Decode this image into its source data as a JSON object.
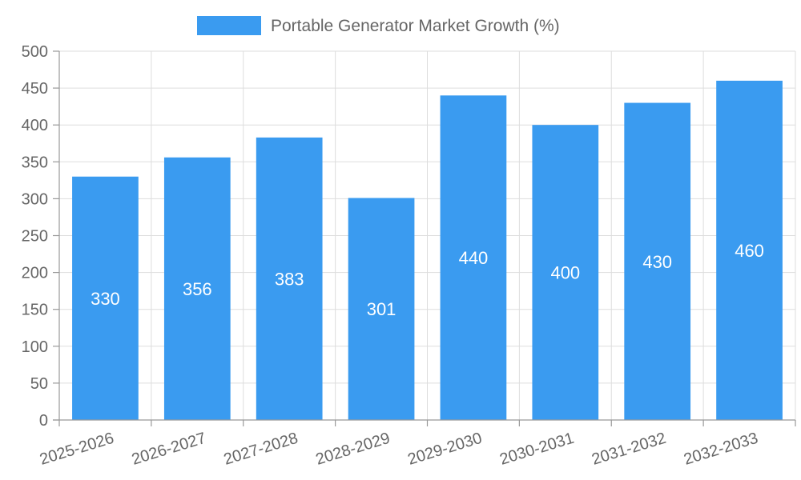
{
  "chart_data": {
    "type": "bar",
    "title": "",
    "xlabel": "",
    "ylabel": "",
    "categories": [
      "2025-2026",
      "2026-2027",
      "2027-2028",
      "2028-2029",
      "2029-2030",
      "2030-2031",
      "2031-2032",
      "2032-2033"
    ],
    "series": [
      {
        "name": "Portable Generator Market Growth (%)",
        "values": [
          330,
          356,
          383,
          301,
          440,
          400,
          430,
          460
        ],
        "color": "#3a9bf0"
      }
    ],
    "ylim": [
      0,
      500
    ],
    "yticks": [
      0,
      50,
      100,
      150,
      200,
      250,
      300,
      350,
      400,
      450,
      500
    ],
    "ytick_labels": [
      "0",
      "50",
      "100",
      "150",
      "200",
      "250",
      "300",
      "350",
      "400",
      "450",
      "500"
    ],
    "data_labels": [
      "330",
      "356",
      "383",
      "301",
      "440",
      "400",
      "430",
      "460"
    ],
    "grid": true,
    "legend_position": "top-center"
  }
}
